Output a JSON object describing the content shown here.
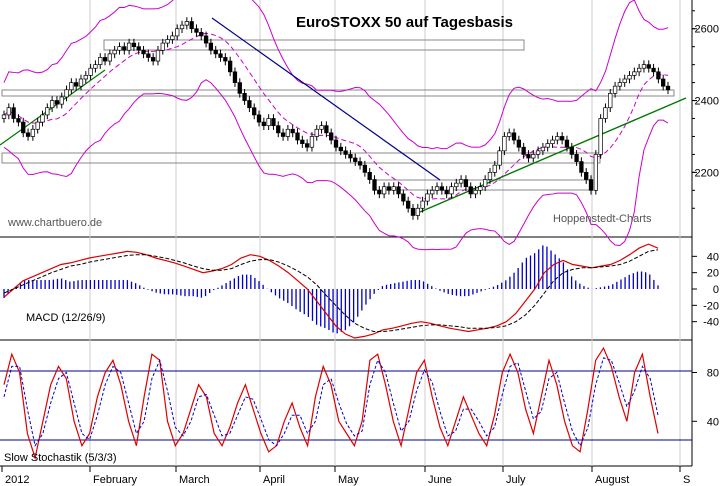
{
  "chart_data": [
    {
      "type": "candlestick",
      "title": "EuroSTOXX 50 auf Tagesbasis",
      "source_left": "www.chartbuero.de",
      "source_right": "Hoppenstedt-Charts",
      "y_ticks": [
        2200,
        2400,
        2600
      ],
      "ylim": [
        2020,
        2680
      ],
      "x_labels": [
        "2012",
        "February",
        "March",
        "April",
        "May",
        "June",
        "July",
        "August",
        "S"
      ],
      "series": [
        {
          "values": [
            2360,
            2380,
            2350,
            2340,
            2310,
            2300,
            2320,
            2340,
            2360,
            2380,
            2400,
            2390,
            2410,
            2430,
            2450,
            2440,
            2460,
            2470,
            2490,
            2500,
            2520,
            2510,
            2530,
            2540,
            2550,
            2540,
            2560,
            2550,
            2540,
            2530,
            2520,
            2510,
            2540,
            2560,
            2570,
            2580,
            2600,
            2610,
            2620,
            2600,
            2590,
            2580,
            2560,
            2540,
            2530,
            2520,
            2510,
            2480,
            2450,
            2420,
            2400,
            2380,
            2360,
            2340,
            2330,
            2350,
            2330,
            2310,
            2300,
            2320,
            2310,
            2290,
            2280,
            2270,
            2300,
            2320,
            2330,
            2310,
            2290,
            2270,
            2260,
            2250,
            2240,
            2230,
            2220,
            2200,
            2180,
            2150,
            2140,
            2160,
            2150,
            2160,
            2140,
            2120,
            2100,
            2080,
            2100,
            2120,
            2140,
            2150,
            2160,
            2150,
            2140,
            2160,
            2170,
            2180,
            2160,
            2140,
            2150,
            2160,
            2180,
            2200,
            2220,
            2260,
            2300,
            2310,
            2290,
            2270,
            2250,
            2240,
            2250,
            2260,
            2270,
            2280,
            2290,
            2300,
            2290,
            2270,
            2250,
            2230,
            2200,
            2180,
            2150,
            2250,
            2350,
            2380,
            2420,
            2440,
            2450,
            2460,
            2470,
            2480,
            2490,
            2500,
            2490,
            2480,
            2460,
            2440,
            2430
          ]
        }
      ]
    },
    {
      "type": "line",
      "label": "MACD (12/26/9)",
      "y_ticks": [
        40,
        20,
        0,
        -20,
        -40
      ],
      "ylim": [
        -60,
        60
      ],
      "series": [
        {
          "values": [
            -10,
            0,
            10,
            15,
            20,
            25,
            30,
            32,
            35,
            38,
            40,
            42,
            44,
            46,
            45,
            42,
            38,
            35,
            32,
            28,
            24,
            20,
            22,
            25,
            30,
            38,
            42,
            40,
            35,
            28,
            20,
            10,
            0,
            -15,
            -30,
            -45,
            -55,
            -60,
            -58,
            -55,
            -50,
            -48,
            -45,
            -42,
            -40,
            -42,
            -45,
            -48,
            -50,
            -52,
            -50,
            -48,
            -45,
            -40,
            -30,
            -15,
            0,
            20,
            30,
            35,
            30,
            28,
            26,
            28,
            30,
            35,
            42,
            50,
            55,
            50
          ]
        },
        {
          "values": [
            -5,
            0,
            5,
            10,
            15,
            20,
            24,
            28,
            30,
            33,
            35,
            37,
            39,
            41,
            42,
            42,
            40,
            38,
            35,
            32,
            28,
            25,
            23,
            23,
            25,
            30,
            34,
            36,
            36,
            33,
            28,
            22,
            15,
            5,
            -8,
            -20,
            -32,
            -42,
            -48,
            -52,
            -52,
            -51,
            -49,
            -47,
            -45,
            -44,
            -44,
            -45,
            -46,
            -48,
            -48,
            -48,
            -47,
            -45,
            -40,
            -32,
            -20,
            -5,
            10,
            20,
            24,
            26,
            26,
            27,
            28,
            30,
            34,
            40,
            46,
            48
          ]
        }
      ]
    },
    {
      "type": "line",
      "label": "Slow Stochastik (5/3/3)",
      "y_ticks": [
        80,
        40
      ],
      "ylim": [
        5,
        105
      ],
      "series": [
        {
          "values": [
            70,
            95,
            80,
            30,
            10,
            40,
            70,
            85,
            75,
            40,
            20,
            30,
            60,
            80,
            90,
            70,
            40,
            20,
            60,
            95,
            90,
            40,
            20,
            30,
            50,
            70,
            60,
            30,
            20,
            35,
            55,
            70,
            50,
            30,
            15,
            20,
            40,
            55,
            35,
            20,
            60,
            85,
            70,
            40,
            30,
            20,
            40,
            90,
            95,
            70,
            40,
            20,
            50,
            80,
            90,
            60,
            35,
            20,
            40,
            60,
            45,
            30,
            20,
            45,
            80,
            95,
            80,
            50,
            30,
            60,
            90,
            70,
            40,
            20,
            15,
            50,
            90,
            100,
            85,
            60,
            40,
            80,
            95,
            60,
            30
          ]
        },
        {
          "values": [
            60,
            85,
            85,
            50,
            20,
            30,
            55,
            75,
            80,
            55,
            30,
            25,
            45,
            70,
            85,
            80,
            55,
            30,
            40,
            75,
            90,
            65,
            35,
            28,
            40,
            60,
            62,
            45,
            28,
            30,
            45,
            60,
            58,
            42,
            25,
            20,
            30,
            45,
            45,
            30,
            40,
            70,
            75,
            55,
            38,
            28,
            32,
            70,
            90,
            80,
            55,
            32,
            40,
            65,
            82,
            72,
            48,
            28,
            32,
            50,
            50,
            40,
            28,
            35,
            62,
            85,
            88,
            65,
            42,
            48,
            75,
            80,
            55,
            32,
            20,
            35,
            70,
            92,
            90,
            72,
            52,
            65,
            85,
            75,
            45
          ]
        }
      ]
    }
  ]
}
